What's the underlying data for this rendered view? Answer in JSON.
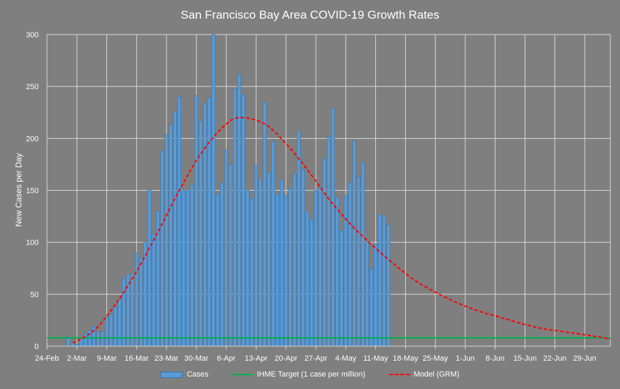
{
  "chart_data": {
    "type": "bar",
    "title": "San Francisco Bay Area COVID-19 Growth Rates",
    "xlabel": "",
    "ylabel": "New Cases per Day",
    "ylim": [
      0,
      300
    ],
    "yticks": [
      0,
      50,
      100,
      150,
      200,
      250,
      300
    ],
    "x_start": "2020-02-24",
    "x_end": "2020-07-05",
    "xtick_labels": [
      "24-Feb",
      "2-Mar",
      "9-Mar",
      "16-Mar",
      "23-Mar",
      "30-Mar",
      "6-Apr",
      "13-Apr",
      "20-Apr",
      "27-Apr",
      "4-May",
      "11-May",
      "18-May",
      "25-May",
      "1-Jun",
      "8-Jun",
      "15-Jun",
      "22-Jun",
      "29-Jun"
    ],
    "grid": true,
    "legend_position": "bottom",
    "series": [
      {
        "name": "Cases",
        "type": "bar",
        "color": "#5b9bd5",
        "x": [
          "2020-02-29",
          "2020-03-01",
          "2020-03-02",
          "2020-03-03",
          "2020-03-04",
          "2020-03-05",
          "2020-03-06",
          "2020-03-07",
          "2020-03-08",
          "2020-03-09",
          "2020-03-10",
          "2020-03-11",
          "2020-03-12",
          "2020-03-13",
          "2020-03-14",
          "2020-03-15",
          "2020-03-16",
          "2020-03-17",
          "2020-03-18",
          "2020-03-19",
          "2020-03-20",
          "2020-03-21",
          "2020-03-22",
          "2020-03-23",
          "2020-03-24",
          "2020-03-25",
          "2020-03-26",
          "2020-03-27",
          "2020-03-28",
          "2020-03-29",
          "2020-03-30",
          "2020-03-31",
          "2020-04-01",
          "2020-04-02",
          "2020-04-03",
          "2020-04-04",
          "2020-04-05",
          "2020-04-06",
          "2020-04-07",
          "2020-04-08",
          "2020-04-09",
          "2020-04-10",
          "2020-04-11",
          "2020-04-12",
          "2020-04-13",
          "2020-04-14",
          "2020-04-15",
          "2020-04-16",
          "2020-04-17",
          "2020-04-18",
          "2020-04-19",
          "2020-04-20",
          "2020-04-21",
          "2020-04-22",
          "2020-04-23",
          "2020-04-24",
          "2020-04-25",
          "2020-04-26",
          "2020-04-27",
          "2020-04-28",
          "2020-04-29",
          "2020-04-30",
          "2020-05-01",
          "2020-05-02",
          "2020-05-03",
          "2020-05-04",
          "2020-05-05",
          "2020-05-06",
          "2020-05-07",
          "2020-05-08",
          "2020-05-09",
          "2020-05-10",
          "2020-05-11",
          "2020-05-12",
          "2020-05-13",
          "2020-05-14"
        ],
        "values": [
          9,
          4,
          2,
          8,
          12,
          15,
          19,
          14,
          14,
          28,
          31,
          38,
          45,
          65,
          69,
          70,
          90,
          85,
          100,
          150,
          108,
          130,
          188,
          204,
          213,
          226,
          240,
          150,
          150,
          155,
          241,
          217,
          234,
          239,
          300,
          146,
          157,
          189,
          175,
          248,
          262,
          242,
          150,
          142,
          174,
          161,
          235,
          167,
          197,
          146,
          160,
          145,
          152,
          166,
          207,
          170,
          129,
          122,
          150,
          153,
          181,
          202,
          229,
          143,
          111,
          145,
          157,
          198,
          163,
          177,
          100,
          74,
          98,
          127,
          125,
          117
        ]
      },
      {
        "name": "IHME Target (1 case per million)",
        "type": "line",
        "color": "#00b050",
        "x": [
          "2020-02-24",
          "2020-07-05"
        ],
        "values": [
          8,
          8
        ]
      },
      {
        "name": "Model (GRM)",
        "type": "line",
        "style": "dashed",
        "color": "#ff0000",
        "x": [
          "2020-03-01",
          "2020-03-06",
          "2020-03-11",
          "2020-03-16",
          "2020-03-21",
          "2020-03-26",
          "2020-03-31",
          "2020-04-05",
          "2020-04-09",
          "2020-04-15",
          "2020-04-20",
          "2020-04-25",
          "2020-04-30",
          "2020-05-05",
          "2020-05-10",
          "2020-05-15",
          "2020-05-20",
          "2020-05-25",
          "2020-05-30",
          "2020-06-04",
          "2020-06-09",
          "2020-06-14",
          "2020-06-19",
          "2020-06-24",
          "2020-06-29",
          "2020-07-05"
        ],
        "values": [
          3,
          15,
          40,
          72,
          110,
          150,
          185,
          210,
          220,
          214,
          195,
          170,
          142,
          118,
          98,
          80,
          64,
          52,
          42,
          34,
          28,
          22,
          17,
          14,
          11,
          7
        ]
      }
    ]
  },
  "legend": {
    "cases": "Cases",
    "target": "IHME Target (1 case per million)",
    "model": "Model (GRM)"
  }
}
